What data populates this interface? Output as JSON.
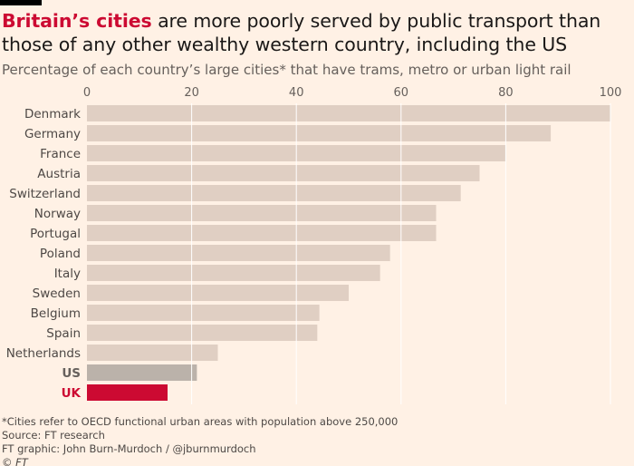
{
  "header": {
    "title_highlight": "Britain’s cities",
    "title_rest": " are more poorly served by public transport than those of any other wealthy western country, including the US",
    "subtitle": "Percentage of each country’s large cities* that have trams, metro or urban light rail"
  },
  "footer": {
    "note": "*Cities refer to OECD functional urban areas with population above 250,000",
    "source": "Source: FT research",
    "credit": "FT graphic: John Burn-Murdoch / @jburnmurdoch",
    "copyright": "© FT"
  },
  "colors": {
    "background": "#fff1e5",
    "bar_default": "#e0cfc3",
    "bar_us": "#bbb2aa",
    "bar_uk": "#cc0a32",
    "gridline": "#ffffff",
    "accent": "#cc0a32"
  },
  "chart_data": {
    "type": "bar",
    "orientation": "horizontal",
    "categories": [
      "Denmark",
      "Germany",
      "France",
      "Austria",
      "Switzerland",
      "Norway",
      "Portugal",
      "Poland",
      "Italy",
      "Sweden",
      "Belgium",
      "Spain",
      "Netherlands",
      "US",
      "UK"
    ],
    "values": [
      100,
      88.6,
      80,
      75,
      71.4,
      66.7,
      66.7,
      57.9,
      56,
      50,
      44.4,
      44,
      25,
      21,
      15.4
    ],
    "highlight": {
      "US": "bar_us",
      "UK": "bar_uk"
    },
    "xlim": [
      0,
      100
    ],
    "xticks": [
      0,
      20,
      40,
      60,
      80,
      100
    ],
    "x_axis_position": "top",
    "grid": true,
    "title": "",
    "xlabel": "",
    "ylabel": ""
  }
}
